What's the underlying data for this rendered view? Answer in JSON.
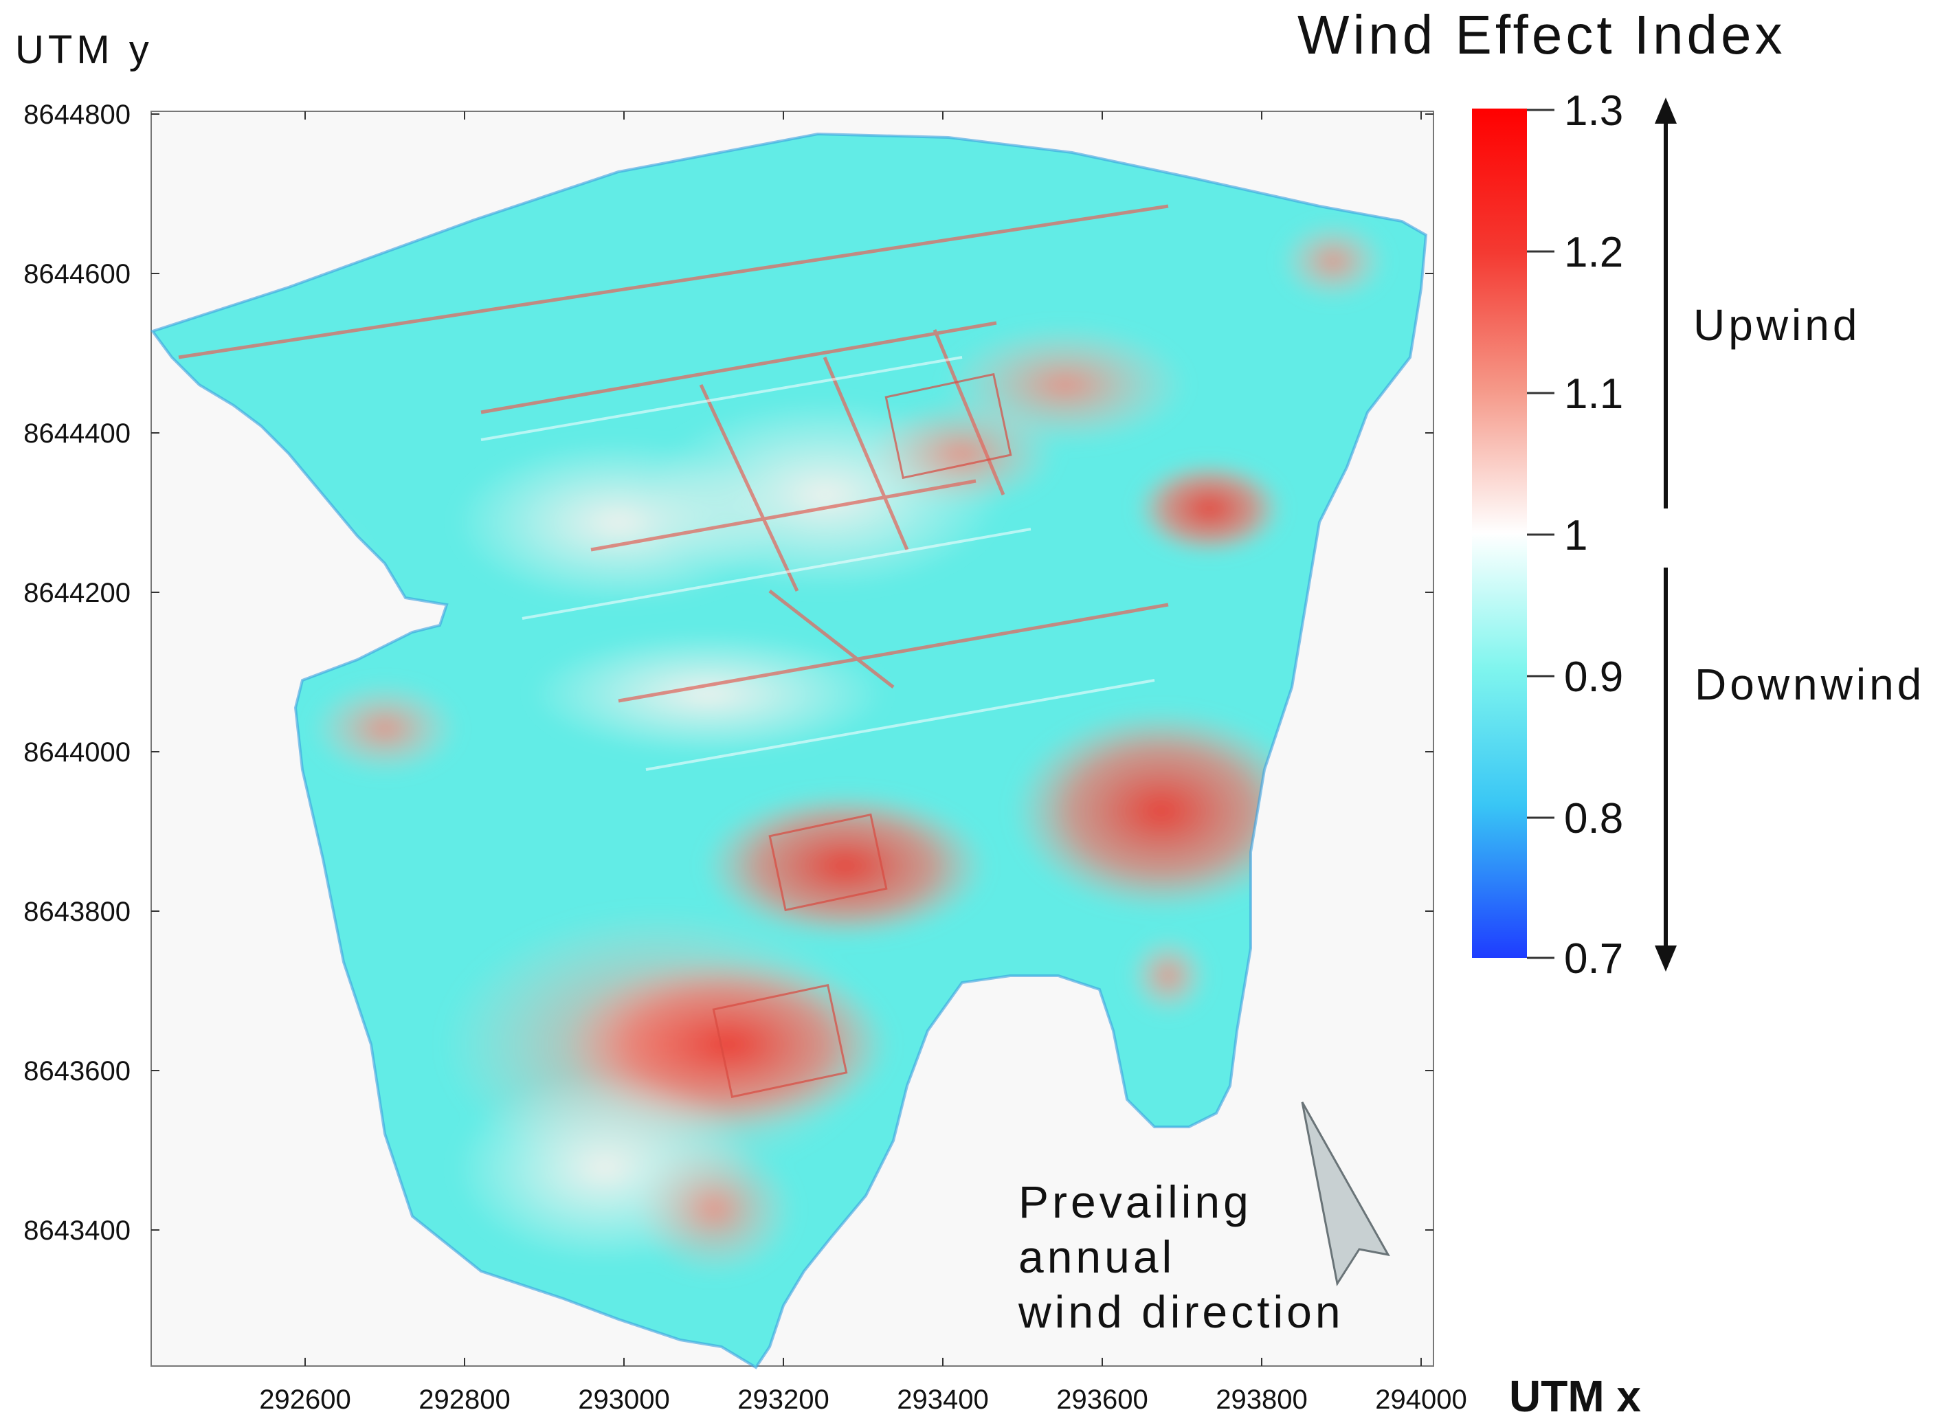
{
  "map": {
    "type": "raster-map",
    "x_axis": {
      "label": "UTM x",
      "range": [
        292420,
        294000
      ],
      "ticks": [
        "292600",
        "292800",
        "293000",
        "293200",
        "293400",
        "293600",
        "293800",
        "294000"
      ],
      "tick_values": [
        292600,
        292800,
        293000,
        293200,
        293400,
        293600,
        293800,
        294000
      ]
    },
    "y_axis": {
      "label": "UTM y",
      "range": [
        8643200,
        8644800
      ],
      "ticks": [
        "8644800",
        "8644600",
        "8644400",
        "8644200",
        "8644000",
        "8643800",
        "8643600",
        "8643400"
      ],
      "tick_values": [
        8644800,
        8644600,
        8644400,
        8644200,
        8644000,
        8643800,
        8643600,
        8643400
      ]
    },
    "colorbar": {
      "title": "Wind Effect Index",
      "ticks": [
        "1.3",
        "1.2",
        "1.1",
        "1",
        "0.9",
        "0.8",
        "0.7"
      ],
      "range": [
        0.7,
        1.3
      ],
      "colors": {
        "high": "#ff0000",
        "mid_high": "#f08080",
        "neutral": "#ffffff",
        "mid_low": "#5ff0ee",
        "low": "#1e3cff"
      },
      "upper_label": "Upwind",
      "lower_label": "Downwind"
    },
    "wind_annotation": {
      "lines": [
        "Prevailing",
        "annual",
        "wind direction"
      ],
      "arrow_icon": "wind-arrow-icon",
      "arrow_color": "#c8d0d2"
    }
  }
}
